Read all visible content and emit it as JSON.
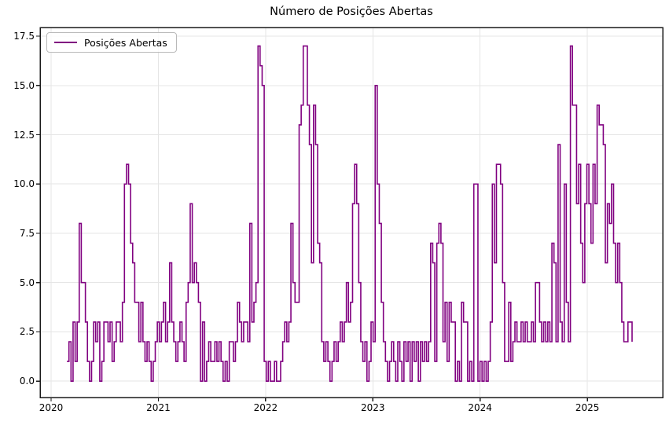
{
  "chart_data": {
    "type": "line",
    "title": "Número de Posições Abertas",
    "xlabel": "",
    "ylabel": "",
    "line_color": "#800080",
    "grid": true,
    "grid_color": "#e5e5e5",
    "spine_color": "#1a1a1a",
    "legend_position": "upper-left",
    "step_mode": "post",
    "xlim": [
      2019.897,
      2025.703
    ],
    "ylim": [
      -0.83,
      17.94
    ],
    "xticks": [
      {
        "value": 2020,
        "label": "2020"
      },
      {
        "value": 2021,
        "label": "2021"
      },
      {
        "value": 2022,
        "label": "2022"
      },
      {
        "value": 2023,
        "label": "2023"
      },
      {
        "value": 2024,
        "label": "2024"
      },
      {
        "value": 2025,
        "label": "2025"
      }
    ],
    "yticks": [
      {
        "value": 0.0,
        "label": "0.0"
      },
      {
        "value": 2.5,
        "label": "2.5"
      },
      {
        "value": 5.0,
        "label": "5.0"
      },
      {
        "value": 7.5,
        "label": "7.5"
      },
      {
        "value": 10.0,
        "label": "10.0"
      },
      {
        "value": 12.5,
        "label": "12.5"
      },
      {
        "value": 15.0,
        "label": "15.0"
      },
      {
        "value": 17.5,
        "label": "17.5"
      }
    ],
    "x_start_year": 2020.147,
    "points_per_year": 52.18,
    "series": [
      {
        "name": "Posições Abertas",
        "values": [
          1,
          2,
          0,
          3,
          1,
          3,
          8,
          5,
          5,
          3,
          1,
          0,
          1,
          3,
          2,
          3,
          0,
          1,
          3,
          3,
          2,
          3,
          1,
          2,
          3,
          3,
          2,
          4,
          10,
          11,
          10,
          7,
          6,
          4,
          4,
          2,
          4,
          2,
          1,
          2,
          1,
          0,
          1,
          2,
          3,
          2,
          3,
          4,
          2,
          3,
          6,
          3,
          2,
          1,
          2,
          3,
          2,
          1,
          4,
          5,
          9,
          5,
          6,
          5,
          4,
          0,
          3,
          0,
          1,
          2,
          1,
          1,
          2,
          1,
          2,
          1,
          0,
          1,
          0,
          2,
          2,
          1,
          2,
          4,
          3,
          2,
          3,
          3,
          2,
          8,
          3,
          4,
          5,
          17,
          16,
          15,
          1,
          0,
          1,
          0,
          0,
          1,
          0,
          0,
          1,
          2,
          3,
          2,
          3,
          8,
          5,
          4,
          4,
          13,
          14,
          17,
          17,
          14,
          12,
          6,
          14,
          12,
          7,
          6,
          2,
          1,
          2,
          1,
          0,
          1,
          2,
          1,
          2,
          3,
          2,
          3,
          5,
          3,
          4,
          9,
          11,
          9,
          5,
          2,
          1,
          2,
          0,
          1,
          3,
          2,
          15,
          10,
          8,
          4,
          2,
          1,
          0,
          1,
          2,
          1,
          0,
          2,
          1,
          0,
          2,
          1,
          2,
          0,
          2,
          1,
          2,
          0,
          2,
          1,
          2,
          1,
          2,
          7,
          6,
          1,
          7,
          8,
          7,
          2,
          4,
          1,
          4,
          3,
          3,
          0,
          1,
          0,
          4,
          3,
          3,
          0,
          1,
          0,
          10,
          10,
          0,
          1,
          0,
          1,
          0,
          1,
          3,
          10,
          6,
          11,
          11,
          10,
          5,
          1,
          1,
          4,
          1,
          2,
          3,
          2,
          2,
          3,
          2,
          3,
          2,
          2,
          3,
          2,
          5,
          5,
          3,
          2,
          3,
          2,
          3,
          2,
          7,
          6,
          2,
          12,
          3,
          2,
          10,
          4,
          2,
          17,
          14,
          14,
          9,
          11,
          7,
          5,
          9,
          11,
          9,
          7,
          11,
          9,
          14,
          13,
          13,
          12,
          6,
          9,
          8,
          10,
          7,
          5,
          7,
          5,
          3,
          2,
          2,
          3,
          3,
          2
        ]
      }
    ]
  }
}
